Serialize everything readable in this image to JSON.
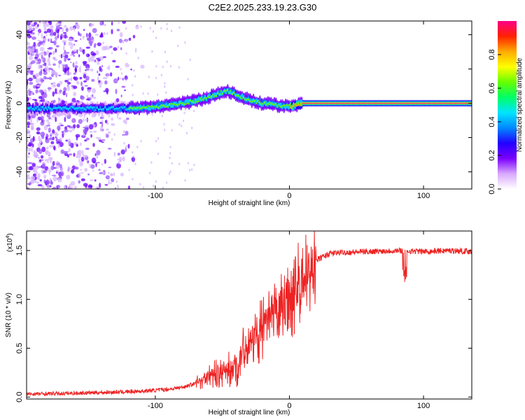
{
  "title": "C2E2.2025.233.19.23.G30",
  "colors": {
    "snr_line": "#ee2222",
    "frame": "#000000",
    "background": "#ffffff"
  },
  "chart_data": [
    {
      "type": "heatmap",
      "name": "spectrogram",
      "xlabel": "Height of straight line (km)",
      "ylabel": "Frequency (Hz)",
      "xlim": [
        -196,
        136
      ],
      "ylim": [
        -50,
        48
      ],
      "xticks": [
        -100,
        0,
        100
      ],
      "yticks": [
        -40,
        -20,
        0,
        20,
        40
      ],
      "xtick_labels": [
        "-100",
        "0",
        "100"
      ],
      "ytick_labels": [
        "-40",
        "-20",
        "0",
        "20",
        "40"
      ],
      "ridge": {
        "description_free": true,
        "x": [
          -196,
          -170,
          -150,
          -130,
          -120,
          -110,
          -100,
          -90,
          -80,
          -70,
          -60,
          -55,
          -50,
          -45,
          -40,
          -35,
          -30,
          -25,
          -20,
          -10,
          0,
          10,
          50,
          136
        ],
        "y": [
          -3,
          -3,
          -3,
          -3,
          -3,
          -2.5,
          -2,
          -1,
          0,
          1.5,
          3.5,
          5,
          6.5,
          7,
          5,
          3.5,
          2,
          1,
          0,
          -1,
          -2,
          0,
          0,
          0
        ]
      },
      "colorbar": {
        "label": "Normalized spectral amplitude",
        "range": [
          0.0,
          1.0
        ],
        "ticks": [
          0.0,
          0.2,
          0.4,
          0.6,
          0.8
        ],
        "tick_labels": [
          "0.0",
          "0.2",
          "0.4",
          "0.6",
          "0.8"
        ],
        "colors": [
          "#ffffff",
          "#d9a8ff",
          "#7b00ff",
          "#2200ff",
          "#0088ff",
          "#00e5ff",
          "#00ff66",
          "#66ff00",
          "#ffff00",
          "#ffaa00",
          "#ff2200",
          "#ff0088"
        ]
      }
    },
    {
      "type": "line",
      "name": "snr",
      "xlabel": "Height of straight line (km)",
      "ylabel": "SNR (10 * v/v)",
      "yscale_note": "(x10",
      "yscale_exp": "4",
      "xlim": [
        -196,
        136
      ],
      "ylim": [
        -0.02,
        1.7
      ],
      "xticks": [
        -100,
        0,
        100
      ],
      "yticks": [
        0.0,
        0.5,
        1.0,
        1.5
      ],
      "xtick_labels": [
        "-100",
        "0",
        "100"
      ],
      "ytick_labels": [
        "0.0",
        "0.5",
        "1.0",
        "1.5"
      ],
      "trend_x": [
        -196,
        -160,
        -130,
        -110,
        -90,
        -80,
        -70,
        -60,
        -50,
        -40,
        -35,
        -30,
        -20,
        -10,
        0,
        10,
        20,
        30,
        40,
        60,
        80,
        100,
        120,
        136
      ],
      "trend_y": [
        0.03,
        0.04,
        0.05,
        0.06,
        0.08,
        0.1,
        0.14,
        0.22,
        0.25,
        0.3,
        0.45,
        0.55,
        0.7,
        0.85,
        1.0,
        1.2,
        1.4,
        1.47,
        1.48,
        1.49,
        1.5,
        1.49,
        1.5,
        1.49
      ]
    }
  ]
}
